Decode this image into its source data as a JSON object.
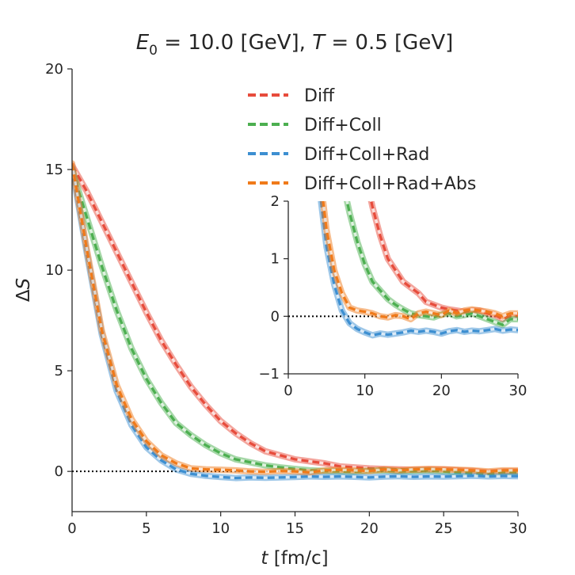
{
  "chart_data": {
    "type": "line",
    "title": {
      "prefix": "E",
      "sub": "0",
      "mid": " = 10.0 [GeV], ",
      "t": "T",
      "suffix": " = 0.5 [GeV]"
    },
    "xlabel": {
      "var": "t",
      "unit": " [fm/c]"
    },
    "ylabel": {
      "sym": "Δ",
      "var": "S"
    },
    "legend_position": "top-right",
    "grid": false,
    "reference_line": {
      "y": 0,
      "style": "dotted"
    },
    "main": {
      "xlim": [
        0,
        30
      ],
      "ylim": [
        -2,
        20
      ],
      "xticks": [
        "0",
        "5",
        "10",
        "15",
        "20",
        "25",
        "30"
      ],
      "yticks": [
        "0",
        "5",
        "10",
        "15",
        "20"
      ]
    },
    "inset": {
      "xlim": [
        0,
        30
      ],
      "ylim": [
        -1,
        2
      ],
      "xticks": [
        "0",
        "10",
        "20",
        "30"
      ],
      "yticks": [
        "−1",
        "0",
        "1",
        "2"
      ]
    },
    "series": [
      {
        "name": "Diff",
        "color": "#e74c3c",
        "points": [
          [
            0,
            15.2
          ],
          [
            1,
            13.9
          ],
          [
            2,
            12.4
          ],
          [
            3,
            10.9
          ],
          [
            4,
            9.4
          ],
          [
            5,
            7.9
          ],
          [
            6,
            6.5
          ],
          [
            7,
            5.3
          ],
          [
            8,
            4.2
          ],
          [
            9,
            3.3
          ],
          [
            10,
            2.5
          ],
          [
            11,
            1.9
          ],
          [
            12,
            1.4
          ],
          [
            13,
            1.0
          ],
          [
            14,
            0.8
          ],
          [
            15,
            0.6
          ],
          [
            16,
            0.5
          ],
          [
            17,
            0.4
          ],
          [
            18,
            0.25
          ],
          [
            19,
            0.2
          ],
          [
            20,
            0.15
          ],
          [
            21,
            0.12
          ],
          [
            22,
            0.1
          ],
          [
            23,
            0.08
          ],
          [
            24,
            0.1
          ],
          [
            25,
            0.1
          ],
          [
            26,
            0.05
          ],
          [
            27,
            0.02
          ],
          [
            28,
            -0.05
          ],
          [
            29,
            0.0
          ],
          [
            30,
            0.0
          ]
        ]
      },
      {
        "name": "Diff+Coll",
        "color": "#4caf50",
        "points": [
          [
            0,
            15.0
          ],
          [
            1,
            12.6
          ],
          [
            2,
            10.2
          ],
          [
            3,
            8.0
          ],
          [
            4,
            6.1
          ],
          [
            5,
            4.6
          ],
          [
            6,
            3.4
          ],
          [
            7,
            2.4
          ],
          [
            8,
            1.8
          ],
          [
            9,
            1.3
          ],
          [
            10,
            0.9
          ],
          [
            11,
            0.6
          ],
          [
            12,
            0.45
          ],
          [
            13,
            0.3
          ],
          [
            14,
            0.2
          ],
          [
            15,
            0.12
          ],
          [
            16,
            0.05
          ],
          [
            17,
            0.02
          ],
          [
            18,
            0.0
          ],
          [
            19,
            -0.02
          ],
          [
            20,
            0.03
          ],
          [
            21,
            0.05
          ],
          [
            22,
            0.0
          ],
          [
            23,
            0.02
          ],
          [
            24,
            0.05
          ],
          [
            25,
            0.0
          ],
          [
            26,
            -0.05
          ],
          [
            27,
            -0.1
          ],
          [
            28,
            -0.15
          ],
          [
            29,
            -0.05
          ],
          [
            30,
            -0.05
          ]
        ]
      },
      {
        "name": "Diff+Coll+Rad",
        "color": "#3d8fd1",
        "points": [
          [
            0,
            15.1
          ],
          [
            1,
            10.8
          ],
          [
            2,
            6.8
          ],
          [
            3,
            4.0
          ],
          [
            4,
            2.3
          ],
          [
            5,
            1.2
          ],
          [
            6,
            0.55
          ],
          [
            7,
            0.1
          ],
          [
            8,
            -0.12
          ],
          [
            9,
            -0.22
          ],
          [
            10,
            -0.28
          ],
          [
            11,
            -0.33
          ],
          [
            12,
            -0.3
          ],
          [
            13,
            -0.32
          ],
          [
            14,
            -0.3
          ],
          [
            15,
            -0.28
          ],
          [
            16,
            -0.25
          ],
          [
            17,
            -0.27
          ],
          [
            18,
            -0.25
          ],
          [
            19,
            -0.27
          ],
          [
            20,
            -0.3
          ],
          [
            21,
            -0.26
          ],
          [
            22,
            -0.24
          ],
          [
            23,
            -0.27
          ],
          [
            24,
            -0.25
          ],
          [
            25,
            -0.26
          ],
          [
            26,
            -0.24
          ],
          [
            27,
            -0.22
          ],
          [
            28,
            -0.25
          ],
          [
            29,
            -0.23
          ],
          [
            30,
            -0.24
          ]
        ]
      },
      {
        "name": "Diff+Coll+Rad+Abs",
        "color": "#f07a1a",
        "points": [
          [
            0,
            15.3
          ],
          [
            1,
            11.0
          ],
          [
            2,
            7.0
          ],
          [
            3,
            4.3
          ],
          [
            4,
            2.6
          ],
          [
            5,
            1.5
          ],
          [
            6,
            0.8
          ],
          [
            7,
            0.4
          ],
          [
            8,
            0.15
          ],
          [
            9,
            0.1
          ],
          [
            10,
            0.08
          ],
          [
            11,
            0.05
          ],
          [
            12,
            0.0
          ],
          [
            13,
            -0.02
          ],
          [
            14,
            0.02
          ],
          [
            15,
            0.0
          ],
          [
            16,
            -0.05
          ],
          [
            17,
            0.05
          ],
          [
            18,
            0.08
          ],
          [
            19,
            0.05
          ],
          [
            20,
            0.02
          ],
          [
            21,
            0.1
          ],
          [
            22,
            0.05
          ],
          [
            23,
            0.1
          ],
          [
            24,
            0.12
          ],
          [
            25,
            0.1
          ],
          [
            26,
            0.08
          ],
          [
            27,
            0.05
          ],
          [
            28,
            0.0
          ],
          [
            29,
            0.05
          ],
          [
            30,
            0.05
          ]
        ]
      }
    ]
  }
}
